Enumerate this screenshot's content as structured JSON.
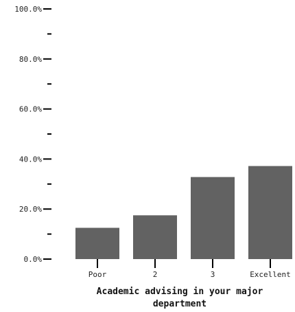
{
  "chart_data": {
    "type": "bar",
    "categories": [
      "Poor",
      "2",
      "3",
      "Excellent"
    ],
    "values": [
      12.5,
      17.5,
      32.8,
      37.2
    ],
    "title": "",
    "xlabel": "Academic advising in your major department",
    "xlabel_lines": [
      "Academic advising in your major",
      "department"
    ],
    "ylabel": "",
    "ylim": [
      0,
      100
    ],
    "y_ticks": [
      {
        "value": 0,
        "label": "0.0%"
      },
      {
        "value": 10,
        "label": ""
      },
      {
        "value": 20,
        "label": "20.0%"
      },
      {
        "value": 30,
        "label": ""
      },
      {
        "value": 40,
        "label": "40.0%"
      },
      {
        "value": 50,
        "label": ""
      },
      {
        "value": 60,
        "label": "60.0%"
      },
      {
        "value": 70,
        "label": ""
      },
      {
        "value": 80,
        "label": "80.0%"
      },
      {
        "value": 90,
        "label": ""
      },
      {
        "value": 100,
        "label": "100.0%"
      }
    ],
    "grid": false,
    "legend": "none",
    "bar_color": "#626262"
  }
}
